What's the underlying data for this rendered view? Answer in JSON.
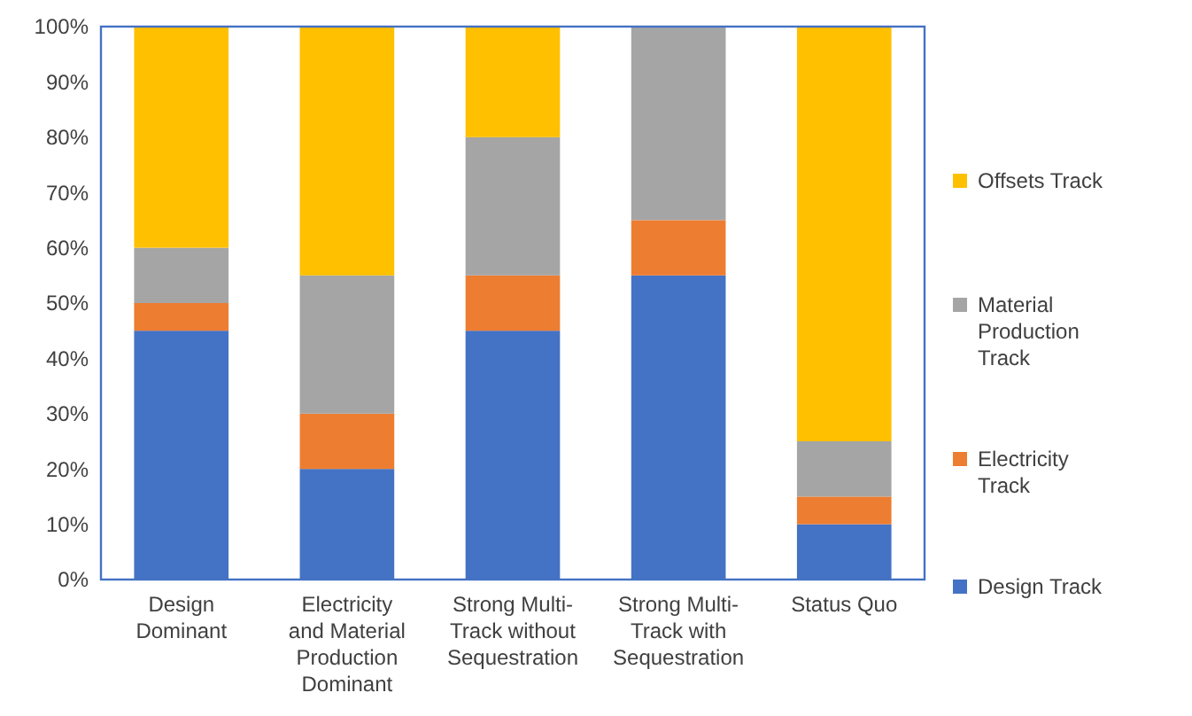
{
  "chart_data": {
    "type": "bar",
    "stacked": true,
    "categories": [
      "Design Dominant",
      "Electricity and Material Production Dominant",
      "Strong Multi-Track without Sequestration",
      "Strong Multi-Track with Sequestration",
      "Status Quo"
    ],
    "series": [
      {
        "name": "Design Track",
        "color": "#4472c4",
        "values": [
          45,
          20,
          45,
          55,
          10
        ]
      },
      {
        "name": "Electricity Track",
        "color": "#ed7d31",
        "values": [
          5,
          10,
          10,
          10,
          5
        ]
      },
      {
        "name": "Material Production Track",
        "color": "#a5a5a5",
        "values": [
          10,
          25,
          25,
          35,
          10
        ]
      },
      {
        "name": "Offsets Track",
        "color": "#ffc000",
        "values": [
          40,
          45,
          20,
          0,
          75
        ]
      }
    ],
    "ylim": [
      0,
      100
    ],
    "yticks": [
      {
        "value": 0,
        "label": "0%"
      },
      {
        "value": 10,
        "label": "10%"
      },
      {
        "value": 20,
        "label": "20%"
      },
      {
        "value": 30,
        "label": "30%"
      },
      {
        "value": 40,
        "label": "40%"
      },
      {
        "value": 50,
        "label": "50%"
      },
      {
        "value": 60,
        "label": "60%"
      },
      {
        "value": 70,
        "label": "70%"
      },
      {
        "value": 80,
        "label": "80%"
      },
      {
        "value": 90,
        "label": "90%"
      },
      {
        "value": 100,
        "label": "100%"
      }
    ],
    "grid": false,
    "legend": "right"
  }
}
